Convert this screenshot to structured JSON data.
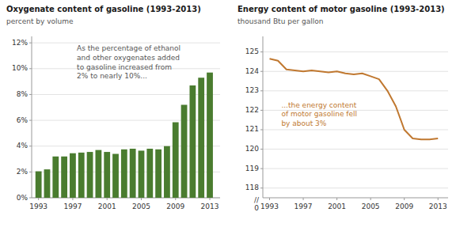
{
  "chart_data": [
    {
      "type": "bar",
      "title": "Oxygenate content of gasoline (1993-2013)",
      "subtitle": "percent  by volume",
      "annotations": [
        "As the percentage of ethanol\nand other oxygenates added\nto gasoline increased from\n2% to nearly 10%..."
      ],
      "x": [
        1993,
        1994,
        1995,
        1996,
        1997,
        1998,
        1999,
        2000,
        2001,
        2002,
        2003,
        2004,
        2005,
        2006,
        2007,
        2008,
        2009,
        2010,
        2011,
        2012,
        2013
      ],
      "values": [
        2.05,
        2.2,
        3.2,
        3.2,
        3.45,
        3.5,
        3.55,
        3.7,
        3.55,
        3.4,
        3.75,
        3.8,
        3.65,
        3.8,
        3.75,
        4.0,
        5.85,
        7.2,
        8.7,
        9.3,
        9.7
      ],
      "color": "#4a7c2f",
      "xlim": [
        1992.2,
        2014.2
      ],
      "xticks": [
        1993,
        1997,
        2001,
        2005,
        2009,
        2013
      ],
      "ylim": [
        0,
        12.5
      ],
      "yticks": [
        {
          "value": 0,
          "label": "0%"
        },
        {
          "value": 2,
          "label": "2%"
        },
        {
          "value": 4,
          "label": "4%"
        },
        {
          "value": 6,
          "label": "6%"
        },
        {
          "value": 8,
          "label": "8%"
        },
        {
          "value": 10,
          "label": "10%"
        },
        {
          "value": 12,
          "label": "12%"
        }
      ],
      "grid": true
    },
    {
      "type": "line",
      "title": "Energy content of motor gasoline (1993-2013)",
      "subtitle": "thousand  Btu per gallon",
      "annotations": [
        "...the energy content\nof motor gasoline fell\nby about 3%",
        "//",
        "0"
      ],
      "x": [
        1993,
        1994,
        1995,
        1996,
        1997,
        1998,
        1999,
        2000,
        2001,
        2002,
        2003,
        2004,
        2005,
        2006,
        2007,
        2008,
        2009,
        2010,
        2011,
        2012,
        2013
      ],
      "values": [
        124.65,
        124.55,
        124.1,
        124.05,
        124.0,
        124.05,
        124.0,
        123.95,
        124.0,
        123.9,
        123.85,
        123.9,
        123.75,
        123.6,
        123.0,
        122.2,
        121.0,
        120.55,
        120.5,
        120.5,
        120.55
      ],
      "color": "#c07830",
      "xlim": [
        1992.2,
        2014.2
      ],
      "xticks": [
        1993,
        1997,
        2001,
        2005,
        2009,
        2013
      ],
      "ylim": [
        117.5,
        125.8
      ],
      "yticks": [
        118,
        119,
        120,
        121,
        122,
        123,
        124,
        125
      ],
      "grid": true
    }
  ]
}
